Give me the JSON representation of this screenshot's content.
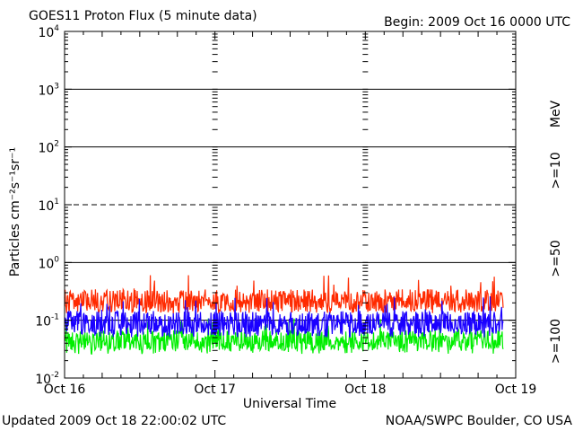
{
  "chart_data": {
    "type": "line",
    "title": "GOES11 Proton Flux (5 minute data)",
    "begin_label": "Begin: 2009 Oct 16 0000 UTC",
    "ylabel": "Particles cm⁻²s⁻¹sr⁻¹",
    "xlabel": "Universal Time",
    "y_scale": "log",
    "ylim": [
      0.01,
      10000
    ],
    "y_ticks": [
      {
        "value": 10000,
        "base": "10",
        "exp": "4"
      },
      {
        "value": 1000,
        "base": "10",
        "exp": "3"
      },
      {
        "value": 100,
        "base": "10",
        "exp": "2"
      },
      {
        "value": 10,
        "base": "10",
        "exp": "1"
      },
      {
        "value": 1,
        "base": "10",
        "exp": "0"
      },
      {
        "value": 0.1,
        "base": "10",
        "exp": "-1"
      },
      {
        "value": 0.01,
        "base": "10",
        "exp": "-2"
      }
    ],
    "x_ticks": [
      "Oct 16",
      "Oct 17",
      "Oct 18",
      "Oct 19"
    ],
    "x_range_days": [
      0,
      3
    ],
    "data_end_day": 2.9167,
    "grid": "horizontal decade lines (10^1 dashed)",
    "legend_unit": "MeV",
    "series": [
      {
        "name": ">=10",
        "color": "#ff2a00",
        "baseline": 0.22,
        "low": 0.13,
        "high": 0.65
      },
      {
        "name": ">=50",
        "color": "#1a00ff",
        "baseline": 0.09,
        "low": 0.05,
        "high": 0.28
      },
      {
        "name": ">=100",
        "color": "#00ee00",
        "baseline": 0.045,
        "low": 0.026,
        "high": 0.11
      }
    ]
  },
  "footer": {
    "updated": "Updated 2009 Oct 18 22:00:02 UTC",
    "credit": "NOAA/SWPC Boulder, CO USA"
  }
}
